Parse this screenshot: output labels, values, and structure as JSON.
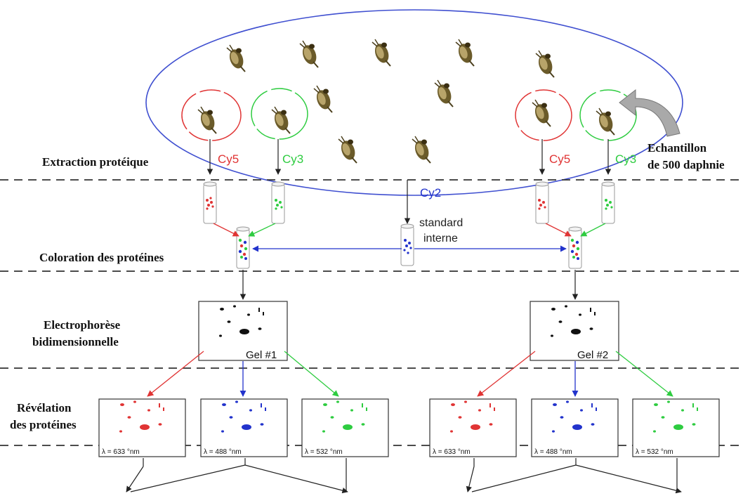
{
  "colors": {
    "ellipse": "#3f4fd0",
    "cy5": "#e03434",
    "cy3": "#2ecc40",
    "cy2": "#2233cc",
    "separator": "#333333",
    "daphnia": "#6b5b2a"
  },
  "icons": {
    "organism": "daphnia-icon",
    "sample_tube": "tube-icon",
    "return_arrow": "curved-arrow-icon"
  },
  "sample_label": {
    "line1": "Echantillon",
    "line2": "de 500 daphnie"
  },
  "stages": {
    "extraction": "Extraction protéique",
    "coloration": "Coloration des protéines",
    "electrophoresis_line1": "Electrophorèse",
    "electrophoresis_line2": "bidimensionnelle",
    "revelation_line1": "Révélation",
    "revelation_line2": "des protéines"
  },
  "dyes": {
    "cy5": "Cy5",
    "cy3": "Cy3",
    "cy2": "Cy2"
  },
  "standard": {
    "line1": "standard",
    "line2": "interne"
  },
  "gels": {
    "gel1": "Gel #1",
    "gel2": "Gel #2"
  },
  "scans": {
    "red": "λ = 633 °nm",
    "blue": "λ = 488 °nm",
    "green": "λ = 532 °nm"
  }
}
